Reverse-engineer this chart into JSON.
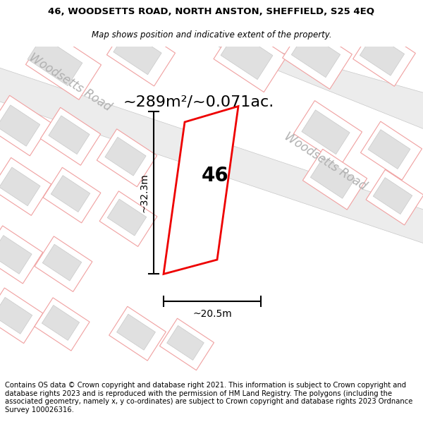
{
  "title_line1": "46, WOODSETTS ROAD, NORTH ANSTON, SHEFFIELD, S25 4EQ",
  "title_line2": "Map shows position and indicative extent of the property.",
  "area_text": "~289m²/~0.071ac.",
  "label_46": "46",
  "dim_height": "~32.3m",
  "dim_width": "~20.5m",
  "road_label_top": "Woodsetts Road",
  "road_label_right": "Woodsetts Road",
  "footer_text": "Contains OS data © Crown copyright and database right 2021. This information is subject to Crown copyright and database rights 2023 and is reproduced with the permission of HM Land Registry. The polygons (including the associated geometry, namely x, y co-ordinates) are subject to Crown copyright and database rights 2023 Ordnance Survey 100026316.",
  "bg_color": "#ffffff",
  "map_bg": "#ffffff",
  "road_fill": "#ececec",
  "road_edge": "#c8c8c8",
  "plot_outline": "#f0a0a0",
  "bldg_fill": "#e0e0e0",
  "bldg_edge": "#c8c8c8",
  "highlight_color": "#ee0000",
  "road_label_color": "#b0b0b0",
  "title_fontsize": 9.5,
  "subtitle_fontsize": 8.5,
  "footer_fontsize": 7.2,
  "area_fontsize": 16,
  "label46_fontsize": 20,
  "dim_fontsize": 10,
  "road_label_fontsize": 12
}
